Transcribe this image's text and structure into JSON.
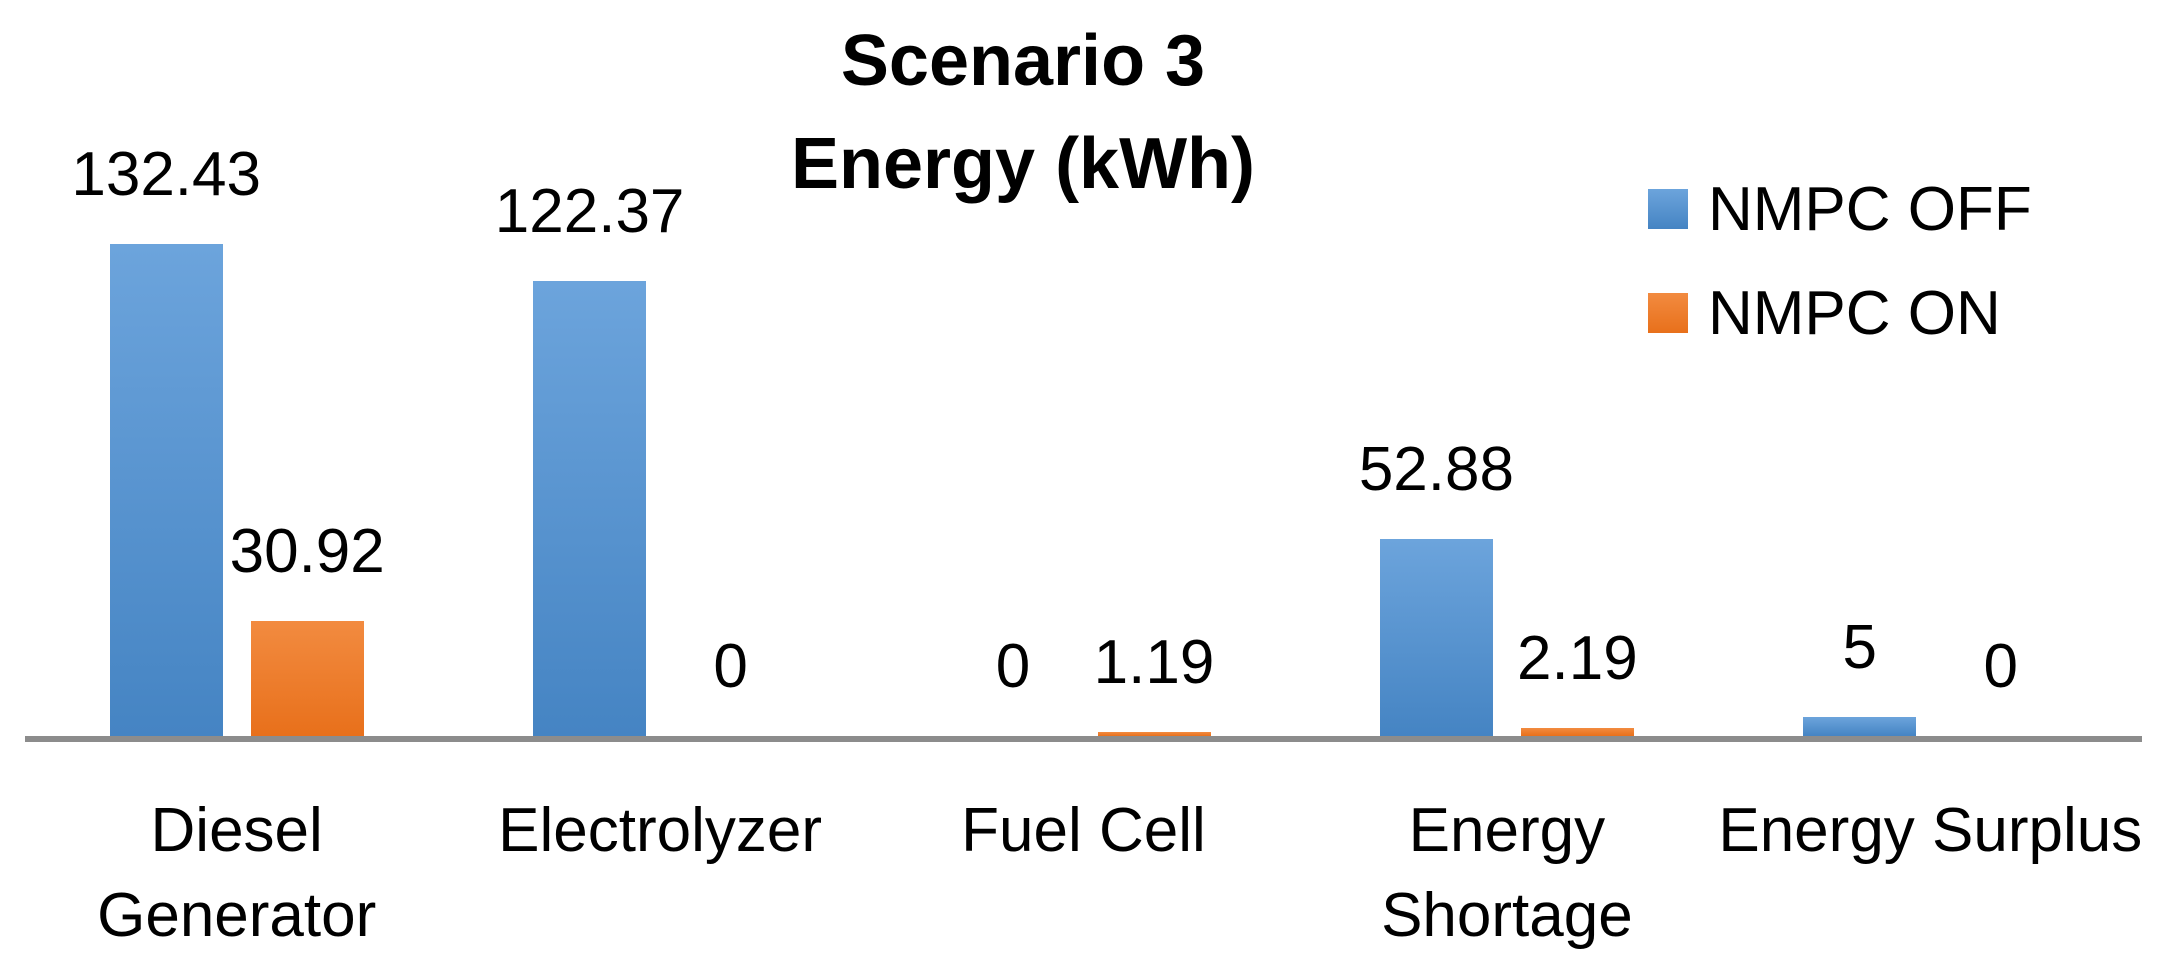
{
  "chart_data": {
    "type": "bar",
    "title": "Scenario 3 Energy (kWh)",
    "title_lines": [
      "Scenario 3",
      "Energy (kWh)"
    ],
    "categories": [
      "Diesel Generator",
      "Electrolyzer",
      "Fuel Cell",
      "Energy Shortage",
      "Energy Surplus"
    ],
    "category_lines": [
      [
        "Diesel",
        "Generator"
      ],
      [
        "Electrolyzer"
      ],
      [
        "Fuel Cell"
      ],
      [
        "Energy",
        "Shortage"
      ],
      [
        "Energy Surplus"
      ]
    ],
    "series": [
      {
        "name": "NMPC OFF",
        "values": [
          132.43,
          122.37,
          0,
          52.88,
          5
        ],
        "labels": [
          "132.43",
          "122.37",
          "0",
          "52.88",
          "5"
        ],
        "color_top": "#6CA4DC",
        "color_bottom": "#4584C3"
      },
      {
        "name": "NMPC ON",
        "values": [
          30.92,
          0,
          1.19,
          2.19,
          0
        ],
        "labels": [
          "30.92",
          "0",
          "1.19",
          "2.19",
          "0"
        ],
        "color_top": "#F28B40",
        "color_bottom": "#E8701B"
      }
    ],
    "xlabel": "",
    "ylabel": "",
    "ylim": [
      0,
      198
    ],
    "y_axis_visible": false,
    "gridlines": false,
    "data_labels": true,
    "legend_position": "top-right",
    "axis_line_color": "#8C8C8C"
  }
}
